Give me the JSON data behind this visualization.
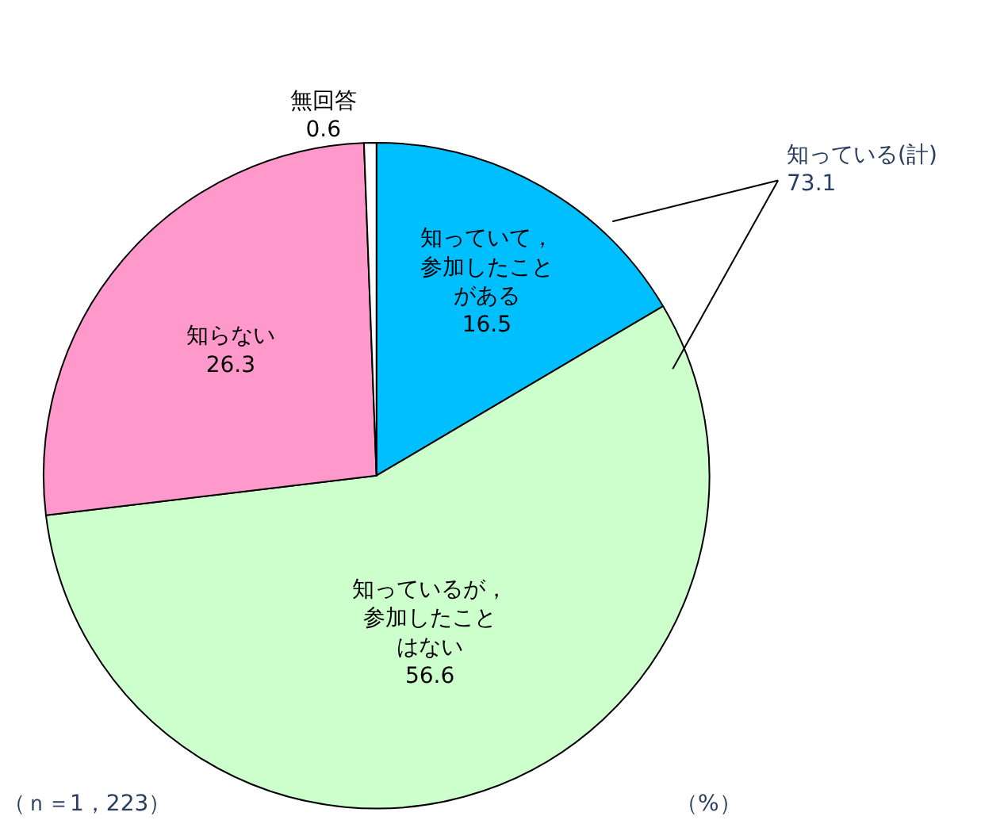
{
  "chart_data": {
    "type": "pie",
    "categories": [
      "知っていて，参加したことがある",
      "知っているが，参加したことはない",
      "知らない",
      "無回答"
    ],
    "values": [
      16.5,
      56.6,
      26.3,
      0.6
    ],
    "colors": [
      "#00bfff",
      "#ccffcc",
      "#ff99cc",
      "#ffffff"
    ],
    "data_labels": true,
    "annotations": [
      "知っている(計)\n73.1",
      "（ｎ＝1，223）",
      "（%）"
    ]
  }
}
